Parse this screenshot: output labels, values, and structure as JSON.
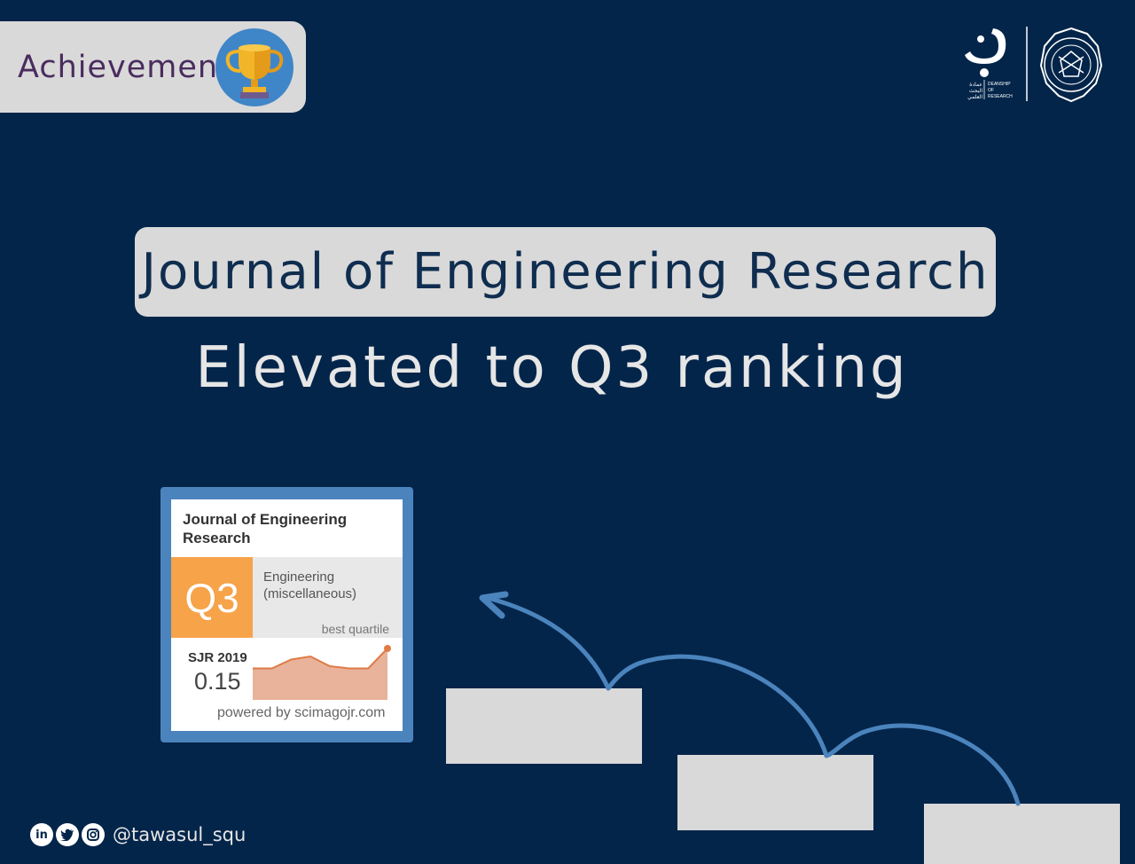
{
  "badge": {
    "label": "Achievement",
    "icon": "trophy-icon"
  },
  "logos": {
    "deanship_en": [
      "DEANSHIP",
      "OF",
      "RESEARCH"
    ],
    "deanship_ar": [
      "عمادة",
      "البحث",
      "العلمي"
    ],
    "university_seal_icon": "university-seal-icon"
  },
  "headline": {
    "title": "Journal of Engineering Research",
    "subtitle": "Elevated to Q3 ranking"
  },
  "scimago_card": {
    "journal_title": "Journal of Engineering Research",
    "quartile": "Q3",
    "category": "Engineering (miscellaneous)",
    "best_quartile_label": "best quartile",
    "sjr_label": "SJR 2019",
    "sjr_value": "0.15",
    "powered_by": "powered by scimagojr.com",
    "trend": [
      0.55,
      0.55,
      0.75,
      0.82,
      0.6,
      0.55,
      0.55,
      1.0
    ],
    "colors": {
      "quartile": "#f6a34a",
      "frame": "#4b84bd",
      "trend_fill": "#e8b39a",
      "trend_line": "#e07a45"
    }
  },
  "social": {
    "icons": [
      "linkedin-icon",
      "twitter-icon",
      "instagram-icon"
    ],
    "handle": "@tawasul_squ"
  },
  "colors": {
    "background": "#04254a",
    "badge_bg": "#d9d9d9",
    "arrow": "#4b84bd",
    "step": "#d9d9d9"
  }
}
